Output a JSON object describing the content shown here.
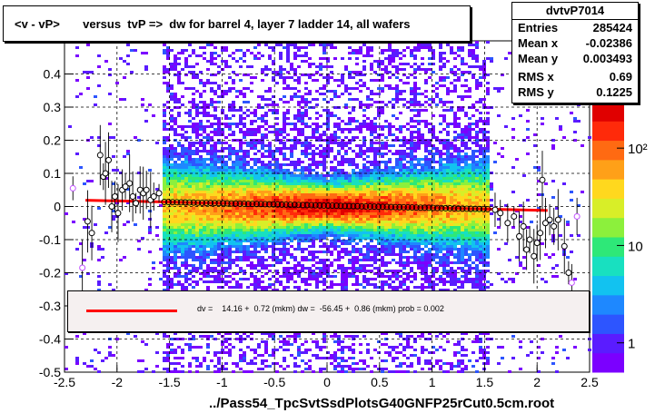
{
  "title": "<v - vP>       versus  tvP =>  dw for barrel 4, layer 7 ladder 14, all wafers",
  "stats": {
    "name": "dvtvP7014",
    "rows": [
      {
        "key": "Entries",
        "value": "285424"
      },
      {
        "key": "Mean x",
        "value": "-0.02386"
      },
      {
        "key": "Mean y",
        "value": "0.003493"
      },
      {
        "key": "RMS x",
        "value": "0.69"
      },
      {
        "key": "RMS y",
        "value": "0.1225"
      }
    ]
  },
  "legend": {
    "text": "dv =    14.16 +  0.72 (mkm) dw =  -56.45 +  0.86 (mkm) prob = 0.002",
    "line_color": "#ff0000"
  },
  "chart_data": {
    "type": "heatmap",
    "xlabel": "../Pass54_TpcSvtSsdPlotsG40GNFP25rCut0.5cm.root",
    "ylabel": "",
    "xlim": [
      -2.5,
      2.5
    ],
    "ylim": [
      -0.5,
      0.5
    ],
    "x_ticks": [
      "-2.5",
      "-2",
      "-1.5",
      "-1",
      "-0.5",
      "0",
      "0.5",
      "1",
      "1.5",
      "2",
      "2.5"
    ],
    "y_ticks": [
      "-0.5",
      "-0.4",
      "-0.3",
      "-0.2",
      "-0.1",
      "0",
      "0.1",
      "0.2",
      "0.3",
      "0.4"
    ],
    "z_ticks": [
      "1",
      "10",
      "10²"
    ],
    "z_log": true,
    "grid": true,
    "fit_line": {
      "x": [
        -2.3,
        2.1
      ],
      "y": [
        0.019,
        -0.012
      ],
      "color": "#ff0000"
    },
    "profile_points": [
      {
        "x": -2.42,
        "y": 0.055
      },
      {
        "x": -2.33,
        "y": -0.185
      },
      {
        "x": -2.28,
        "y": -0.045
      },
      {
        "x": -2.24,
        "y": -0.08
      },
      {
        "x": -2.16,
        "y": 0.155
      },
      {
        "x": -2.13,
        "y": 0.09
      },
      {
        "x": -2.11,
        "y": 0.1
      },
      {
        "x": -2.08,
        "y": 0.14
      },
      {
        "x": -2.05,
        "y": 0.0
      },
      {
        "x": -2.02,
        "y": 0.03
      },
      {
        "x": -1.99,
        "y": -0.02
      },
      {
        "x": -1.95,
        "y": 0.05
      },
      {
        "x": -1.92,
        "y": 0.06
      },
      {
        "x": -1.88,
        "y": 0.07
      },
      {
        "x": -1.85,
        "y": 0.03
      },
      {
        "x": -1.82,
        "y": 0.01
      },
      {
        "x": -1.78,
        "y": 0.05
      },
      {
        "x": -1.75,
        "y": 0.04
      },
      {
        "x": -1.72,
        "y": 0.05
      },
      {
        "x": -1.68,
        "y": 0.02
      },
      {
        "x": -1.65,
        "y": 0.03
      },
      {
        "x": -1.6,
        "y": 0.04
      },
      {
        "x": 1.6,
        "y": -0.01
      },
      {
        "x": 1.65,
        "y": -0.02
      },
      {
        "x": 1.72,
        "y": -0.05
      },
      {
        "x": 1.78,
        "y": -0.03
      },
      {
        "x": 1.83,
        "y": -0.09
      },
      {
        "x": 1.87,
        "y": -0.06
      },
      {
        "x": 1.9,
        "y": -0.13
      },
      {
        "x": 1.93,
        "y": -0.1
      },
      {
        "x": 1.97,
        "y": -0.15
      },
      {
        "x": 2.0,
        "y": -0.11
      },
      {
        "x": 2.03,
        "y": -0.08
      },
      {
        "x": 2.05,
        "y": 0.08
      },
      {
        "x": 2.08,
        "y": -0.05
      },
      {
        "x": 2.12,
        "y": -0.04
      },
      {
        "x": 2.16,
        "y": -0.06
      },
      {
        "x": 2.2,
        "y": -0.04
      },
      {
        "x": 2.26,
        "y": -0.12
      },
      {
        "x": 2.3,
        "y": -0.2
      },
      {
        "x": 2.33,
        "y": -0.23
      },
      {
        "x": 2.38,
        "y": -0.03
      }
    ]
  }
}
